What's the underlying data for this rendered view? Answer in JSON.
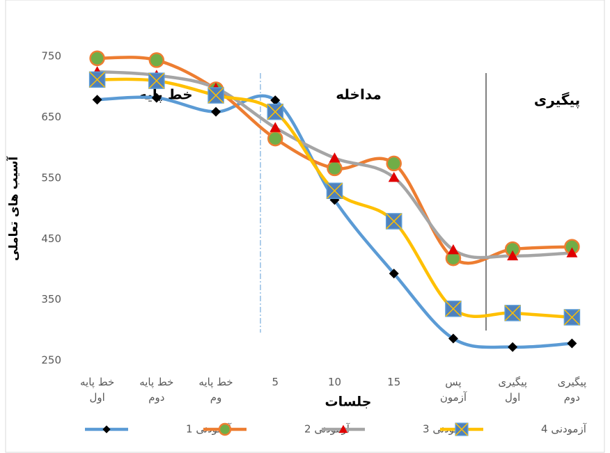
{
  "chart_data": {
    "type": "line",
    "y_label": "آسیب های تعاملی",
    "x_label": "جلسات",
    "annotations": [
      "خط پایه",
      "مداخله",
      "پیگیری"
    ],
    "categories": [
      "خط پایه اول",
      "خط پایه دوم",
      "خط پایه وم",
      "5",
      "10",
      "15",
      "پس آزمون",
      "پیگیری اول",
      "پیگیری دوم"
    ],
    "series": [
      {
        "name": "آزمودنی 1",
        "color": "#5b9bd5",
        "marker": "diamond",
        "values": [
          679,
          682,
          659,
          678,
          514,
          393,
          286,
          272,
          278
        ]
      },
      {
        "name": "آزمودنی 2",
        "color": "#ed7d31",
        "marker": "circle",
        "values": [
          747,
          744,
          696,
          615,
          566,
          574,
          418,
          433,
          437
        ]
      },
      {
        "name": "آزمودنی 3",
        "color": "#a5a5a5",
        "marker": "triangle",
        "values": [
          725,
          719,
          698,
          633,
          583,
          551,
          432,
          422,
          427
        ]
      },
      {
        "name": "آزمودنی 4",
        "color": "#ffc000",
        "marker": "square-x",
        "values": [
          712,
          710,
          686,
          659,
          529,
          479,
          335,
          328,
          321
        ]
      }
    ],
    "ylim": [
      250,
      820
    ],
    "yticks": [
      250,
      350,
      450,
      550,
      650,
      750
    ],
    "grid": false,
    "legend": "bottom"
  }
}
